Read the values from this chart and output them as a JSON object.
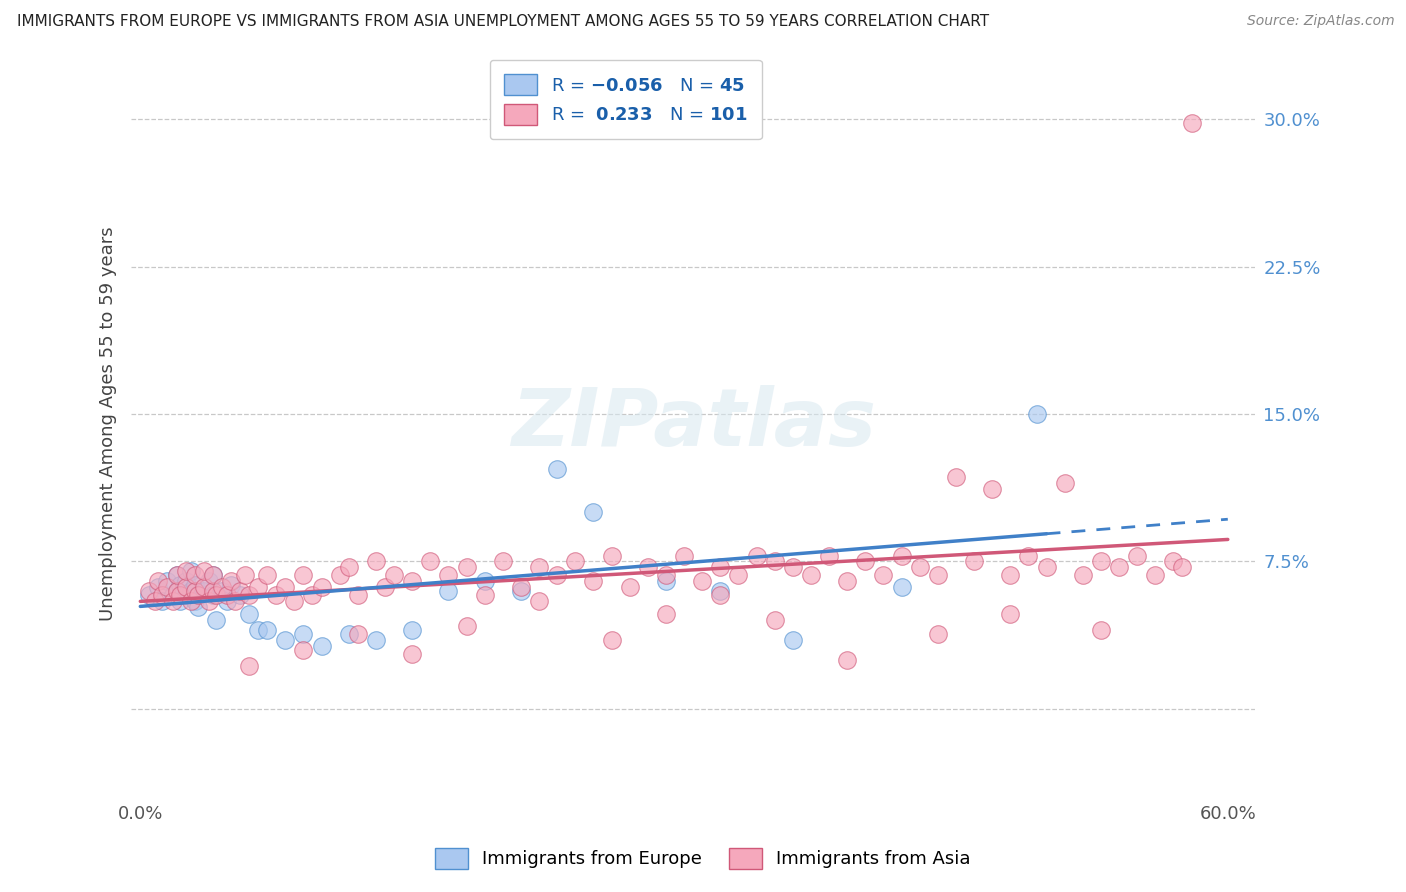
{
  "title": "IMMIGRANTS FROM EUROPE VS IMMIGRANTS FROM ASIA UNEMPLOYMENT AMONG AGES 55 TO 59 YEARS CORRELATION CHART",
  "source": "Source: ZipAtlas.com",
  "ylabel": "Unemployment Among Ages 55 to 59 years",
  "xlim": [
    -0.005,
    0.615
  ],
  "ylim": [
    -0.045,
    0.335
  ],
  "ytick_vals": [
    0.0,
    0.075,
    0.15,
    0.225,
    0.3
  ],
  "ytick_labels": [
    "",
    "7.5%",
    "15.0%",
    "22.5%",
    "30.0%"
  ],
  "xtick_vals": [
    0.0,
    0.6
  ],
  "xtick_labels": [
    "0.0%",
    "60.0%"
  ],
  "legend_europe_N": "45",
  "legend_asia_R": "0.233",
  "legend_asia_N": "101",
  "color_europe_fill": "#aac8f0",
  "color_europe_edge": "#5090d0",
  "color_asia_fill": "#f5a8bc",
  "color_asia_edge": "#d05878",
  "color_europe_line": "#4080c8",
  "color_asia_line": "#d05878",
  "background_color": "#ffffff",
  "grid_color": "#c8c8c8",
  "title_color": "#222222",
  "source_color": "#888888",
  "ylabel_color": "#444444",
  "ytick_color": "#5090d0",
  "europe_x": [
    0.005,
    0.01,
    0.012,
    0.015,
    0.018,
    0.02,
    0.02,
    0.022,
    0.022,
    0.025,
    0.025,
    0.028,
    0.028,
    0.03,
    0.03,
    0.032,
    0.032,
    0.035,
    0.038,
    0.04,
    0.04,
    0.042,
    0.045,
    0.048,
    0.05,
    0.055,
    0.06,
    0.065,
    0.07,
    0.08,
    0.09,
    0.1,
    0.115,
    0.13,
    0.15,
    0.17,
    0.19,
    0.21,
    0.23,
    0.25,
    0.29,
    0.32,
    0.36,
    0.42,
    0.495
  ],
  "europe_y": [
    0.058,
    0.062,
    0.055,
    0.065,
    0.058,
    0.06,
    0.068,
    0.055,
    0.063,
    0.058,
    0.065,
    0.06,
    0.07,
    0.055,
    0.063,
    0.058,
    0.052,
    0.06,
    0.065,
    0.058,
    0.068,
    0.045,
    0.06,
    0.055,
    0.063,
    0.058,
    0.048,
    0.04,
    0.04,
    0.035,
    0.038,
    0.032,
    0.038,
    0.035,
    0.04,
    0.06,
    0.065,
    0.06,
    0.122,
    0.1,
    0.065,
    0.06,
    0.035,
    0.062,
    0.15
  ],
  "asia_x": [
    0.005,
    0.008,
    0.01,
    0.012,
    0.015,
    0.018,
    0.02,
    0.02,
    0.022,
    0.025,
    0.025,
    0.028,
    0.03,
    0.03,
    0.032,
    0.035,
    0.035,
    0.038,
    0.04,
    0.04,
    0.042,
    0.045,
    0.048,
    0.05,
    0.052,
    0.055,
    0.058,
    0.06,
    0.065,
    0.07,
    0.075,
    0.08,
    0.085,
    0.09,
    0.095,
    0.1,
    0.11,
    0.115,
    0.12,
    0.13,
    0.135,
    0.14,
    0.15,
    0.16,
    0.17,
    0.18,
    0.19,
    0.2,
    0.21,
    0.22,
    0.23,
    0.24,
    0.25,
    0.26,
    0.27,
    0.28,
    0.29,
    0.3,
    0.31,
    0.32,
    0.33,
    0.34,
    0.35,
    0.36,
    0.37,
    0.38,
    0.39,
    0.4,
    0.41,
    0.42,
    0.43,
    0.44,
    0.45,
    0.46,
    0.47,
    0.48,
    0.49,
    0.5,
    0.51,
    0.52,
    0.53,
    0.54,
    0.55,
    0.56,
    0.57,
    0.575,
    0.53,
    0.48,
    0.44,
    0.39,
    0.35,
    0.32,
    0.29,
    0.26,
    0.22,
    0.18,
    0.15,
    0.12,
    0.09,
    0.06,
    0.58
  ],
  "asia_y": [
    0.06,
    0.055,
    0.065,
    0.058,
    0.062,
    0.055,
    0.06,
    0.068,
    0.058,
    0.062,
    0.07,
    0.055,
    0.06,
    0.068,
    0.058,
    0.062,
    0.07,
    0.055,
    0.06,
    0.068,
    0.058,
    0.062,
    0.058,
    0.065,
    0.055,
    0.06,
    0.068,
    0.058,
    0.062,
    0.068,
    0.058,
    0.062,
    0.055,
    0.068,
    0.058,
    0.062,
    0.068,
    0.072,
    0.058,
    0.075,
    0.062,
    0.068,
    0.065,
    0.075,
    0.068,
    0.072,
    0.058,
    0.075,
    0.062,
    0.072,
    0.068,
    0.075,
    0.065,
    0.078,
    0.062,
    0.072,
    0.068,
    0.078,
    0.065,
    0.072,
    0.068,
    0.078,
    0.075,
    0.072,
    0.068,
    0.078,
    0.065,
    0.075,
    0.068,
    0.078,
    0.072,
    0.068,
    0.118,
    0.075,
    0.112,
    0.068,
    0.078,
    0.072,
    0.115,
    0.068,
    0.075,
    0.072,
    0.078,
    0.068,
    0.075,
    0.072,
    0.04,
    0.048,
    0.038,
    0.025,
    0.045,
    0.058,
    0.048,
    0.035,
    0.055,
    0.042,
    0.028,
    0.038,
    0.03,
    0.022,
    0.298
  ],
  "europe_line_solid_end": 0.5,
  "europe_line_dash_start": 0.5,
  "europe_line_end": 0.6
}
